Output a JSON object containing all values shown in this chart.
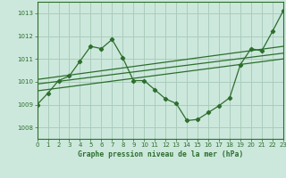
{
  "background_color": "#cce8dc",
  "grid_color": "#aaccbb",
  "line_color": "#2d6e2d",
  "title": "Graphe pression niveau de la mer (hPa)",
  "xlim": [
    0,
    23
  ],
  "ylim": [
    1007.5,
    1013.5
  ],
  "yticks": [
    1008,
    1009,
    1010,
    1011,
    1012,
    1013
  ],
  "xticks": [
    0,
    1,
    2,
    3,
    4,
    5,
    6,
    7,
    8,
    9,
    10,
    11,
    12,
    13,
    14,
    15,
    16,
    17,
    18,
    19,
    20,
    21,
    22,
    23
  ],
  "series1_x": [
    0,
    1,
    2,
    3,
    4,
    5,
    6,
    7,
    8,
    9,
    10,
    11,
    12,
    13,
    14,
    15,
    16,
    17,
    18,
    19,
    20,
    21,
    22,
    23
  ],
  "series1_y": [
    1009.0,
    1009.5,
    1010.05,
    1010.25,
    1010.9,
    1011.55,
    1011.45,
    1011.85,
    1011.05,
    1010.05,
    1010.05,
    1009.65,
    1009.25,
    1009.05,
    1008.3,
    1008.35,
    1008.65,
    1008.95,
    1009.3,
    1010.75,
    1011.45,
    1011.35,
    1012.2,
    1013.1
  ],
  "series2_x": [
    0,
    23
  ],
  "series2_y": [
    1009.6,
    1011.0
  ],
  "series3_x": [
    0,
    23
  ],
  "series3_y": [
    1009.9,
    1011.25
  ],
  "series4_x": [
    0,
    23
  ],
  "series4_y": [
    1010.1,
    1011.55
  ]
}
